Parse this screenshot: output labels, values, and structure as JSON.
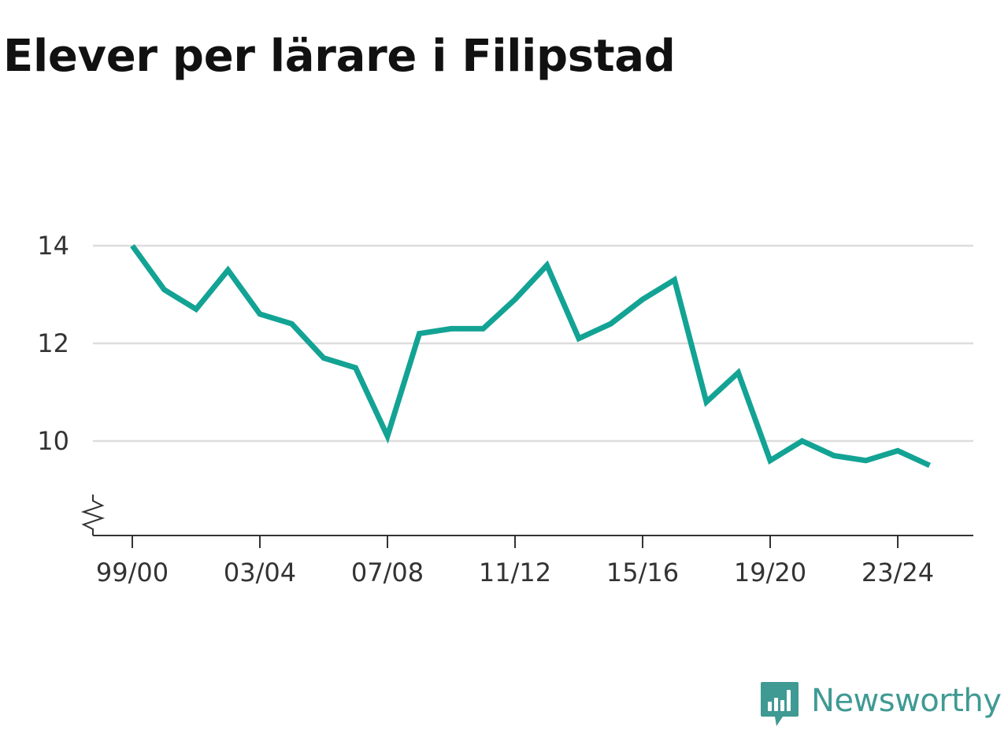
{
  "header": {
    "title": "Elever per lärare i Filipstad"
  },
  "brand": {
    "name": "Newsworthy",
    "color": "#3f9a93",
    "icon": "newsworthy-chart-bubble-icon"
  },
  "colors": {
    "line": "#13a394",
    "grid": "#dddddd",
    "axis": "#333333"
  },
  "chart_data": {
    "type": "line",
    "title": "Elever per lärare i Filipstad",
    "xlabel": "",
    "ylabel": "",
    "x": [
      "99/00",
      "00/01",
      "01/02",
      "02/03",
      "03/04",
      "04/05",
      "05/06",
      "06/07",
      "07/08",
      "08/09",
      "09/10",
      "10/11",
      "11/12",
      "12/13",
      "13/14",
      "14/15",
      "15/16",
      "16/17",
      "17/18",
      "18/19",
      "19/20",
      "20/21",
      "21/22",
      "22/23",
      "23/24",
      "24/25"
    ],
    "series": [
      {
        "values": [
          14.0,
          13.1,
          12.7,
          13.5,
          12.6,
          12.4,
          11.7,
          11.5,
          10.1,
          12.2,
          12.3,
          12.3,
          12.9,
          13.6,
          12.1,
          12.4,
          12.9,
          13.3,
          10.8,
          11.4,
          9.6,
          10.0,
          9.7,
          9.6,
          9.8,
          9.5
        ]
      }
    ],
    "x_tick_labels": [
      "99/00",
      "03/04",
      "07/08",
      "11/12",
      "15/16",
      "19/20",
      "23/24"
    ],
    "y_ticks": [
      10,
      12,
      14
    ],
    "ylim": [
      8.1,
      14.3
    ],
    "axis_break": true,
    "grid": "horizontal"
  }
}
